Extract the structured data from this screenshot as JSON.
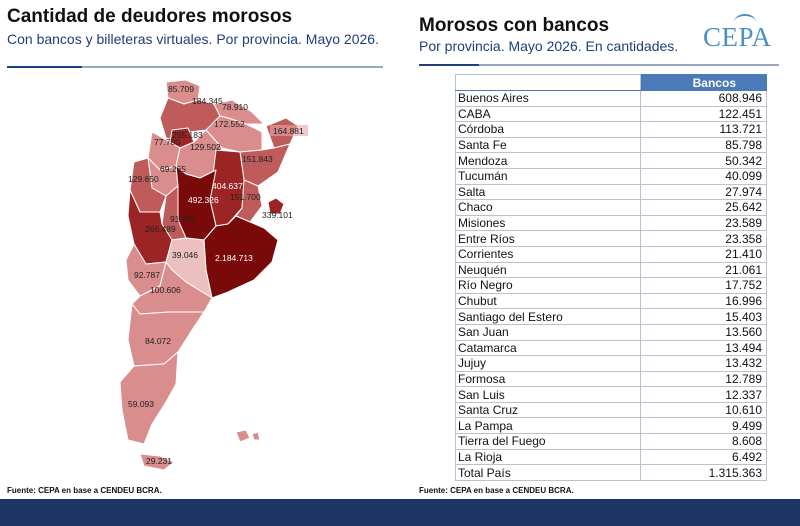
{
  "left": {
    "title": "Cantidad de deudores morosos",
    "subtitle": "Con bancos y billeteras virtuales. Por provincia. Mayo 2026.",
    "source": "Fuente: CEPA en base a CENDEU BCRA."
  },
  "right": {
    "title": "Morosos con bancos",
    "subtitle": "Por provincia. Mayo 2026. En cantidades.",
    "source": "Fuente: CEPA en base a CENDEU BCRA.",
    "column_header": "Bancos"
  },
  "logo": "CEPA",
  "colors": {
    "darkest": "#7a0a0a",
    "dark": "#9c2424",
    "mid": "#bf5b5b",
    "light": "#d98d8d",
    "lightest": "#ecc0bf",
    "table_header": "#4a7ab8",
    "footer": "#1e3465"
  },
  "map_labels": {
    "jujuy": "85.709",
    "salta_n": "184.345",
    "formosa": "78.910",
    "chaco": "172.552",
    "misiones": "164.881",
    "tucuman": "255.183",
    "catamarca": "77.700",
    "santiago": "129.502",
    "corrientes": "151.843",
    "la_rioja": "69.265",
    "san_juan": "129.650",
    "santa_fe": "404.637",
    "cordoba": "492.326",
    "entre_rios": "151.700",
    "caba": "339.101",
    "san_luis": "91.456",
    "mendoza": "266.489",
    "buenos_aires": "2.184.713",
    "la_pampa": "39.046",
    "neuquen": "92.787",
    "rio_negro": "100.606",
    "chubut": "84.072",
    "santa_cruz": "59.093",
    "tierra_del_fuego": "29.231"
  },
  "table": {
    "rows": [
      {
        "province": "Buenos Aires",
        "value": "608.946"
      },
      {
        "province": "CABA",
        "value": "122.451"
      },
      {
        "province": "Córdoba",
        "value": "113.721"
      },
      {
        "province": "Santa Fe",
        "value": "85.798"
      },
      {
        "province": "Mendoza",
        "value": "50.342"
      },
      {
        "province": "Tucumán",
        "value": "40.099"
      },
      {
        "province": "Salta",
        "value": "27.974"
      },
      {
        "province": "Chaco",
        "value": "25.642"
      },
      {
        "province": "Misiones",
        "value": "23.589"
      },
      {
        "province": "Entre Ríos",
        "value": "23.358"
      },
      {
        "province": "Corrientes",
        "value": "21.410"
      },
      {
        "province": "Neuquén",
        "value": "21.061"
      },
      {
        "province": "Río Negro",
        "value": "17.752"
      },
      {
        "province": "Chubut",
        "value": "16.996"
      },
      {
        "province": "Santiago del Estero",
        "value": "15.403"
      },
      {
        "province": "San Juan",
        "value": "13.560"
      },
      {
        "province": "Catamarca",
        "value": "13.494"
      },
      {
        "province": "Jujuy",
        "value": "13.432"
      },
      {
        "province": "Formosa",
        "value": "12.789"
      },
      {
        "province": "San Luis",
        "value": "12.337"
      },
      {
        "province": "Santa Cruz",
        "value": "10.610"
      },
      {
        "province": "La Pampa",
        "value": "9.499"
      },
      {
        "province": "Tierra del Fuego",
        "value": "8.608"
      },
      {
        "province": "La Rioja",
        "value": "6.492"
      }
    ],
    "total": {
      "province": "Total País",
      "value": "1.315.363"
    }
  }
}
